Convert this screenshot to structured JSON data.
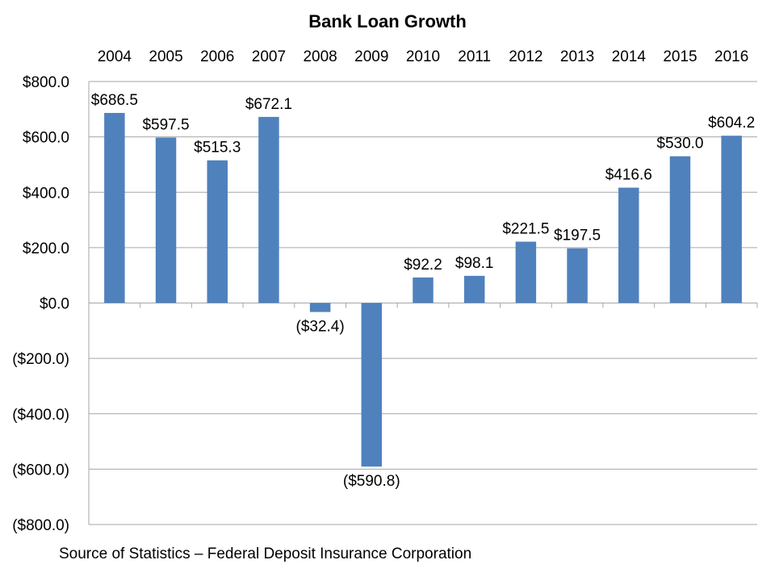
{
  "chart_data": {
    "type": "bar",
    "title": "Bank Loan Growth",
    "categories": [
      "2004",
      "2005",
      "2006",
      "2007",
      "2008",
      "2009",
      "2010",
      "2011",
      "2012",
      "2013",
      "2014",
      "2015",
      "2016"
    ],
    "values": [
      686.5,
      597.5,
      515.3,
      672.1,
      -32.4,
      -590.8,
      92.2,
      98.1,
      221.5,
      197.5,
      416.6,
      530.0,
      604.2
    ],
    "data_labels": [
      "$686.5",
      "$597.5",
      "$515.3",
      "$672.1",
      "($32.4)",
      "($590.8)",
      "$92.2",
      "$98.1",
      "$221.5",
      "$197.5",
      "$416.6",
      "$530.0",
      "$604.2"
    ],
    "ylim": [
      -800,
      800
    ],
    "y_ticks": [
      800,
      600,
      400,
      200,
      0,
      -200,
      -400,
      -600,
      -800
    ],
    "y_tick_labels": [
      "$800.0",
      "$600.0",
      "$400.0",
      "$200.0",
      "$0.0",
      "($200.0)",
      "($400.0)",
      "($600.0)",
      "($800.0)"
    ],
    "x_axis_position": "top",
    "grid": true,
    "bar_color": "#4F81BD",
    "grid_color": "#A6A6A6",
    "note": "Source of Statistics – Federal Deposit Insurance Corporation"
  }
}
